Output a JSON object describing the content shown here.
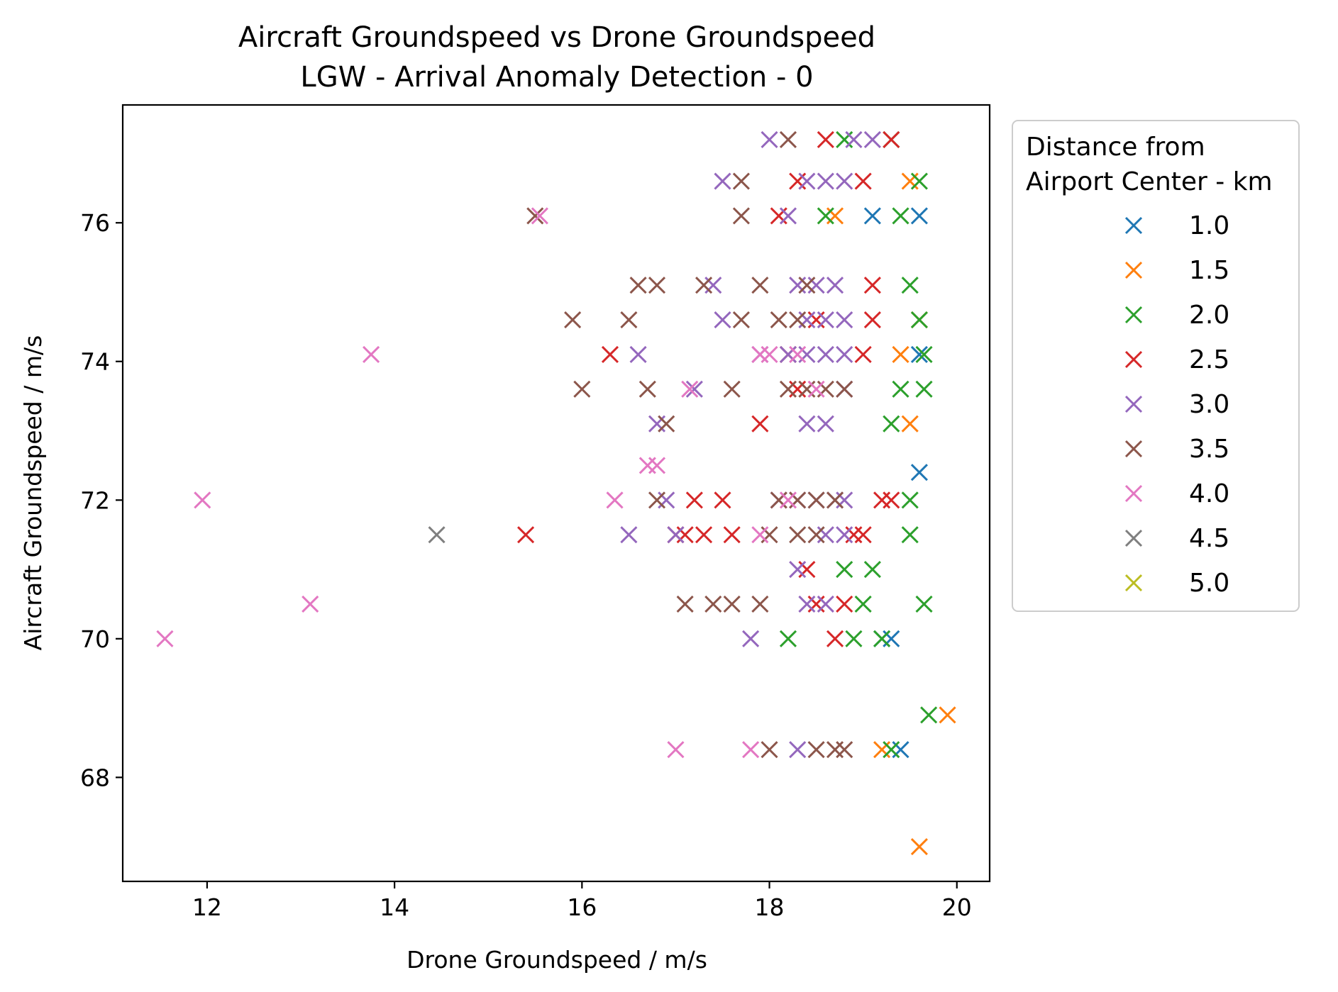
{
  "chart_data": {
    "type": "scatter",
    "title": "Aircraft Groundspeed vs Drone Groundspeed",
    "subtitle": "LGW - Arrival Anomaly Detection - 0",
    "xlabel": "Drone Groundspeed / m/s",
    "ylabel": "Aircraft Groundspeed / m/s",
    "xlim": [
      11.1,
      20.35
    ],
    "ylim": [
      66.5,
      77.7
    ],
    "xticks": [
      12,
      14,
      16,
      18,
      20
    ],
    "yticks": [
      68,
      70,
      72,
      74,
      76
    ],
    "grid": false,
    "marker": "x",
    "legend": {
      "title_lines": [
        "Distance from",
        "Airport Center - km"
      ],
      "placement": "outside-right-top"
    },
    "series": [
      {
        "name": "1.0",
        "color": "#1f77b4",
        "points": [
          [
            19.6,
            72.4
          ],
          [
            19.6,
            76.1
          ],
          [
            19.1,
            76.1
          ],
          [
            19.2,
            70.0
          ],
          [
            19.4,
            68.4
          ],
          [
            19.3,
            70.0
          ],
          [
            19.6,
            74.1
          ]
        ]
      },
      {
        "name": "1.5",
        "color": "#ff7f0e",
        "points": [
          [
            19.6,
            67.0
          ],
          [
            19.9,
            68.9
          ],
          [
            18.7,
            76.1
          ],
          [
            19.5,
            76.6
          ],
          [
            19.6,
            74.6
          ],
          [
            19.5,
            73.1
          ],
          [
            19.2,
            68.4
          ],
          [
            19.4,
            74.1
          ]
        ]
      },
      {
        "name": "2.0",
        "color": "#2ca02c",
        "points": [
          [
            19.7,
            68.9
          ],
          [
            19.65,
            70.5
          ],
          [
            19.65,
            73.6
          ],
          [
            19.6,
            74.6
          ],
          [
            19.65,
            74.1
          ],
          [
            19.5,
            71.5
          ],
          [
            19.5,
            72.0
          ],
          [
            19.5,
            75.1
          ],
          [
            19.6,
            76.6
          ],
          [
            19.4,
            76.1
          ],
          [
            19.3,
            77.2
          ],
          [
            19.2,
            70.0
          ],
          [
            19.1,
            71.0
          ],
          [
            19.3,
            68.4
          ],
          [
            19.3,
            73.1
          ],
          [
            19.4,
            73.6
          ],
          [
            19.0,
            70.5
          ],
          [
            18.8,
            71.0
          ],
          [
            18.9,
            70.0
          ],
          [
            18.8,
            77.2
          ],
          [
            18.6,
            76.1
          ],
          [
            18.2,
            70.0
          ]
        ]
      },
      {
        "name": "2.5",
        "color": "#d62728",
        "points": [
          [
            15.4,
            71.5
          ],
          [
            16.3,
            74.1
          ],
          [
            17.0,
            71.5
          ],
          [
            17.1,
            71.5
          ],
          [
            17.3,
            71.5
          ],
          [
            17.6,
            71.5
          ],
          [
            17.2,
            72.0
          ],
          [
            17.5,
            72.0
          ],
          [
            17.9,
            73.1
          ],
          [
            18.2,
            74.1
          ],
          [
            18.3,
            73.6
          ],
          [
            18.5,
            74.6
          ],
          [
            18.6,
            77.2
          ],
          [
            19.1,
            75.1
          ],
          [
            19.0,
            74.1
          ],
          [
            19.2,
            72.0
          ],
          [
            19.0,
            71.5
          ],
          [
            18.7,
            70.0
          ],
          [
            18.8,
            70.5
          ],
          [
            19.3,
            77.2
          ],
          [
            19.0,
            76.6
          ],
          [
            18.3,
            76.6
          ],
          [
            18.1,
            76.1
          ],
          [
            19.1,
            74.6
          ],
          [
            19.3,
            72.0
          ],
          [
            18.9,
            71.5
          ],
          [
            18.5,
            70.5
          ],
          [
            18.4,
            71.0
          ]
        ]
      },
      {
        "name": "3.0",
        "color": "#9467bd",
        "points": [
          [
            16.5,
            71.5
          ],
          [
            16.6,
            74.1
          ],
          [
            16.8,
            73.1
          ],
          [
            16.9,
            72.0
          ],
          [
            17.0,
            71.5
          ],
          [
            17.2,
            73.6
          ],
          [
            17.4,
            75.1
          ],
          [
            17.5,
            74.6
          ],
          [
            17.5,
            76.6
          ],
          [
            17.8,
            70.0
          ],
          [
            17.9,
            74.1
          ],
          [
            18.0,
            77.2
          ],
          [
            18.1,
            72.0
          ],
          [
            18.3,
            72.0
          ],
          [
            18.5,
            72.0
          ],
          [
            18.7,
            72.0
          ],
          [
            18.8,
            72.0
          ],
          [
            18.3,
            75.1
          ],
          [
            18.5,
            75.1
          ],
          [
            18.7,
            75.1
          ],
          [
            18.2,
            74.1
          ],
          [
            18.4,
            74.1
          ],
          [
            18.6,
            74.1
          ],
          [
            18.8,
            74.1
          ],
          [
            18.4,
            74.6
          ],
          [
            18.6,
            74.6
          ],
          [
            18.8,
            74.6
          ],
          [
            18.4,
            76.6
          ],
          [
            18.6,
            76.6
          ],
          [
            18.8,
            76.6
          ],
          [
            18.9,
            77.2
          ],
          [
            19.1,
            77.2
          ],
          [
            18.6,
            71.5
          ],
          [
            18.8,
            71.5
          ],
          [
            18.4,
            73.1
          ],
          [
            18.6,
            73.1
          ],
          [
            18.8,
            73.6
          ],
          [
            18.4,
            70.5
          ],
          [
            18.6,
            70.5
          ],
          [
            18.3,
            68.4
          ],
          [
            18.3,
            71.0
          ],
          [
            18.2,
            76.1
          ]
        ]
      },
      {
        "name": "3.5",
        "color": "#8c564b",
        "points": [
          [
            15.5,
            76.1
          ],
          [
            15.9,
            74.6
          ],
          [
            16.0,
            73.6
          ],
          [
            16.5,
            74.6
          ],
          [
            16.6,
            75.1
          ],
          [
            16.8,
            75.1
          ],
          [
            16.7,
            73.6
          ],
          [
            16.8,
            72.0
          ],
          [
            16.9,
            73.1
          ],
          [
            17.1,
            70.5
          ],
          [
            17.4,
            70.5
          ],
          [
            17.6,
            70.5
          ],
          [
            17.3,
            75.1
          ],
          [
            17.6,
            73.6
          ],
          [
            17.7,
            74.6
          ],
          [
            17.7,
            76.1
          ],
          [
            17.7,
            76.6
          ],
          [
            18.0,
            68.4
          ],
          [
            18.2,
            77.2
          ],
          [
            17.9,
            70.5
          ],
          [
            18.0,
            71.5
          ],
          [
            17.9,
            75.1
          ],
          [
            18.1,
            72.0
          ],
          [
            18.3,
            72.0
          ],
          [
            18.5,
            72.0
          ],
          [
            18.7,
            72.0
          ],
          [
            18.2,
            73.6
          ],
          [
            18.4,
            73.6
          ],
          [
            18.6,
            73.6
          ],
          [
            18.8,
            73.6
          ],
          [
            18.1,
            74.6
          ],
          [
            18.3,
            74.6
          ],
          [
            18.5,
            68.4
          ],
          [
            18.7,
            68.4
          ],
          [
            18.8,
            68.4
          ],
          [
            18.4,
            75.1
          ],
          [
            18.3,
            71.5
          ],
          [
            18.5,
            71.5
          ]
        ]
      },
      {
        "name": "4.0",
        "color": "#e377c2",
        "points": [
          [
            11.55,
            70.0
          ],
          [
            11.95,
            72.0
          ],
          [
            13.1,
            70.5
          ],
          [
            13.75,
            74.1
          ],
          [
            15.55,
            76.1
          ],
          [
            16.35,
            72.0
          ],
          [
            16.7,
            72.5
          ],
          [
            16.8,
            72.5
          ],
          [
            17.0,
            68.4
          ],
          [
            17.15,
            73.6
          ],
          [
            17.8,
            68.4
          ],
          [
            17.9,
            74.1
          ],
          [
            18.0,
            74.1
          ],
          [
            18.3,
            74.1
          ],
          [
            17.9,
            71.5
          ],
          [
            18.5,
            73.6
          ],
          [
            18.2,
            72.0
          ]
        ]
      },
      {
        "name": "4.5",
        "color": "#7f7f7f",
        "points": [
          [
            14.45,
            71.5
          ]
        ]
      },
      {
        "name": "5.0",
        "color": "#bcbd22",
        "points": []
      }
    ]
  }
}
